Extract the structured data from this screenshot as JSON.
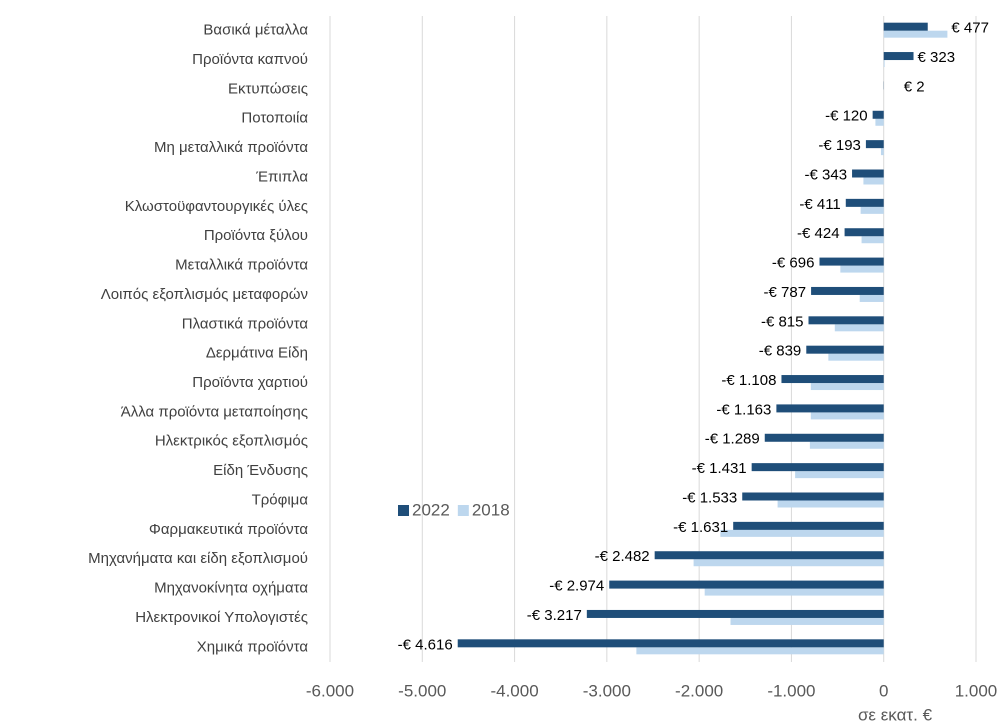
{
  "chart_data": {
    "type": "barh",
    "categories": [
      "Βασικά μέταλλα",
      "Προϊόντα καπνού",
      "Εκτυπώσεις ",
      "Ποτοποιία",
      "Μη μεταλλικά προϊόντα",
      "Έπιπλα",
      "Κλωστοϋφαντουργικές ύλες ",
      "Προϊόντα ξύλου",
      "Μεταλλικά προϊόντα",
      "Λοιπός εξοπλισμός μεταφορών",
      "Πλαστικά προϊόντα",
      "Δερμάτινα Είδη",
      "Προϊόντα χαρτιού",
      "Άλλα προϊόντα μεταποίησης",
      "Ηλεκτρικός εξοπλισμός",
      "Είδη Ένδυσης",
      "Τρόφιμα",
      "Φαρμακευτικά προϊόντα",
      "Μηχανήματα και είδη εξοπλισμού",
      "Μηχανοκίνητα οχήματα",
      "Ηλεκτρονικοί Υπολογιστές",
      "Χημικά προϊόντα"
    ],
    "series": [
      {
        "name": "2022",
        "color": "#1f4e79",
        "values": [
          477,
          323,
          2,
          -120,
          -193,
          -343,
          -411,
          -424,
          -696,
          -787,
          -815,
          -839,
          -1108,
          -1163,
          -1289,
          -1431,
          -1533,
          -1631,
          -2482,
          -2974,
          -3217,
          -4616
        ],
        "value_labels": [
          "€ 477",
          "€ 323",
          "€ 2",
          "-€ 120",
          "-€ 193",
          "-€ 343",
          "-€ 411",
          "-€ 424",
          "-€ 696",
          "-€ 787",
          "-€ 815",
          "-€ 839",
          "-€ 1.108",
          "-€ 1.163",
          "-€ 1.289",
          "-€ 1.431",
          "-€ 1.533",
          "-€ 1.631",
          "-€ 2.482",
          "-€ 2.974",
          "-€ 3.217",
          "-€ 4.616"
        ]
      },
      {
        "name": "2018",
        "color": "#bdd7ee",
        "values": [
          690,
          10,
          0,
          -90,
          -30,
          -220,
          -250,
          -240,
          -470,
          -260,
          -530,
          -600,
          -790,
          -790,
          -800,
          -960,
          -1150,
          -1770,
          -2060,
          -1940,
          -1660,
          -2680
        ]
      }
    ],
    "xlim": [
      -6000,
      1000
    ],
    "xticks": [
      {
        "value": -6000,
        "label": "-6.000"
      },
      {
        "value": -5000,
        "label": "-5.000"
      },
      {
        "value": -4000,
        "label": "-4.000"
      },
      {
        "value": -3000,
        "label": "-3.000"
      },
      {
        "value": -2000,
        "label": "-2.000"
      },
      {
        "value": -1000,
        "label": "-1.000"
      },
      0,
      {
        "value": 1000,
        "label": "1.000"
      }
    ],
    "x_label": "σε εκατ. €",
    "grid": true
  }
}
